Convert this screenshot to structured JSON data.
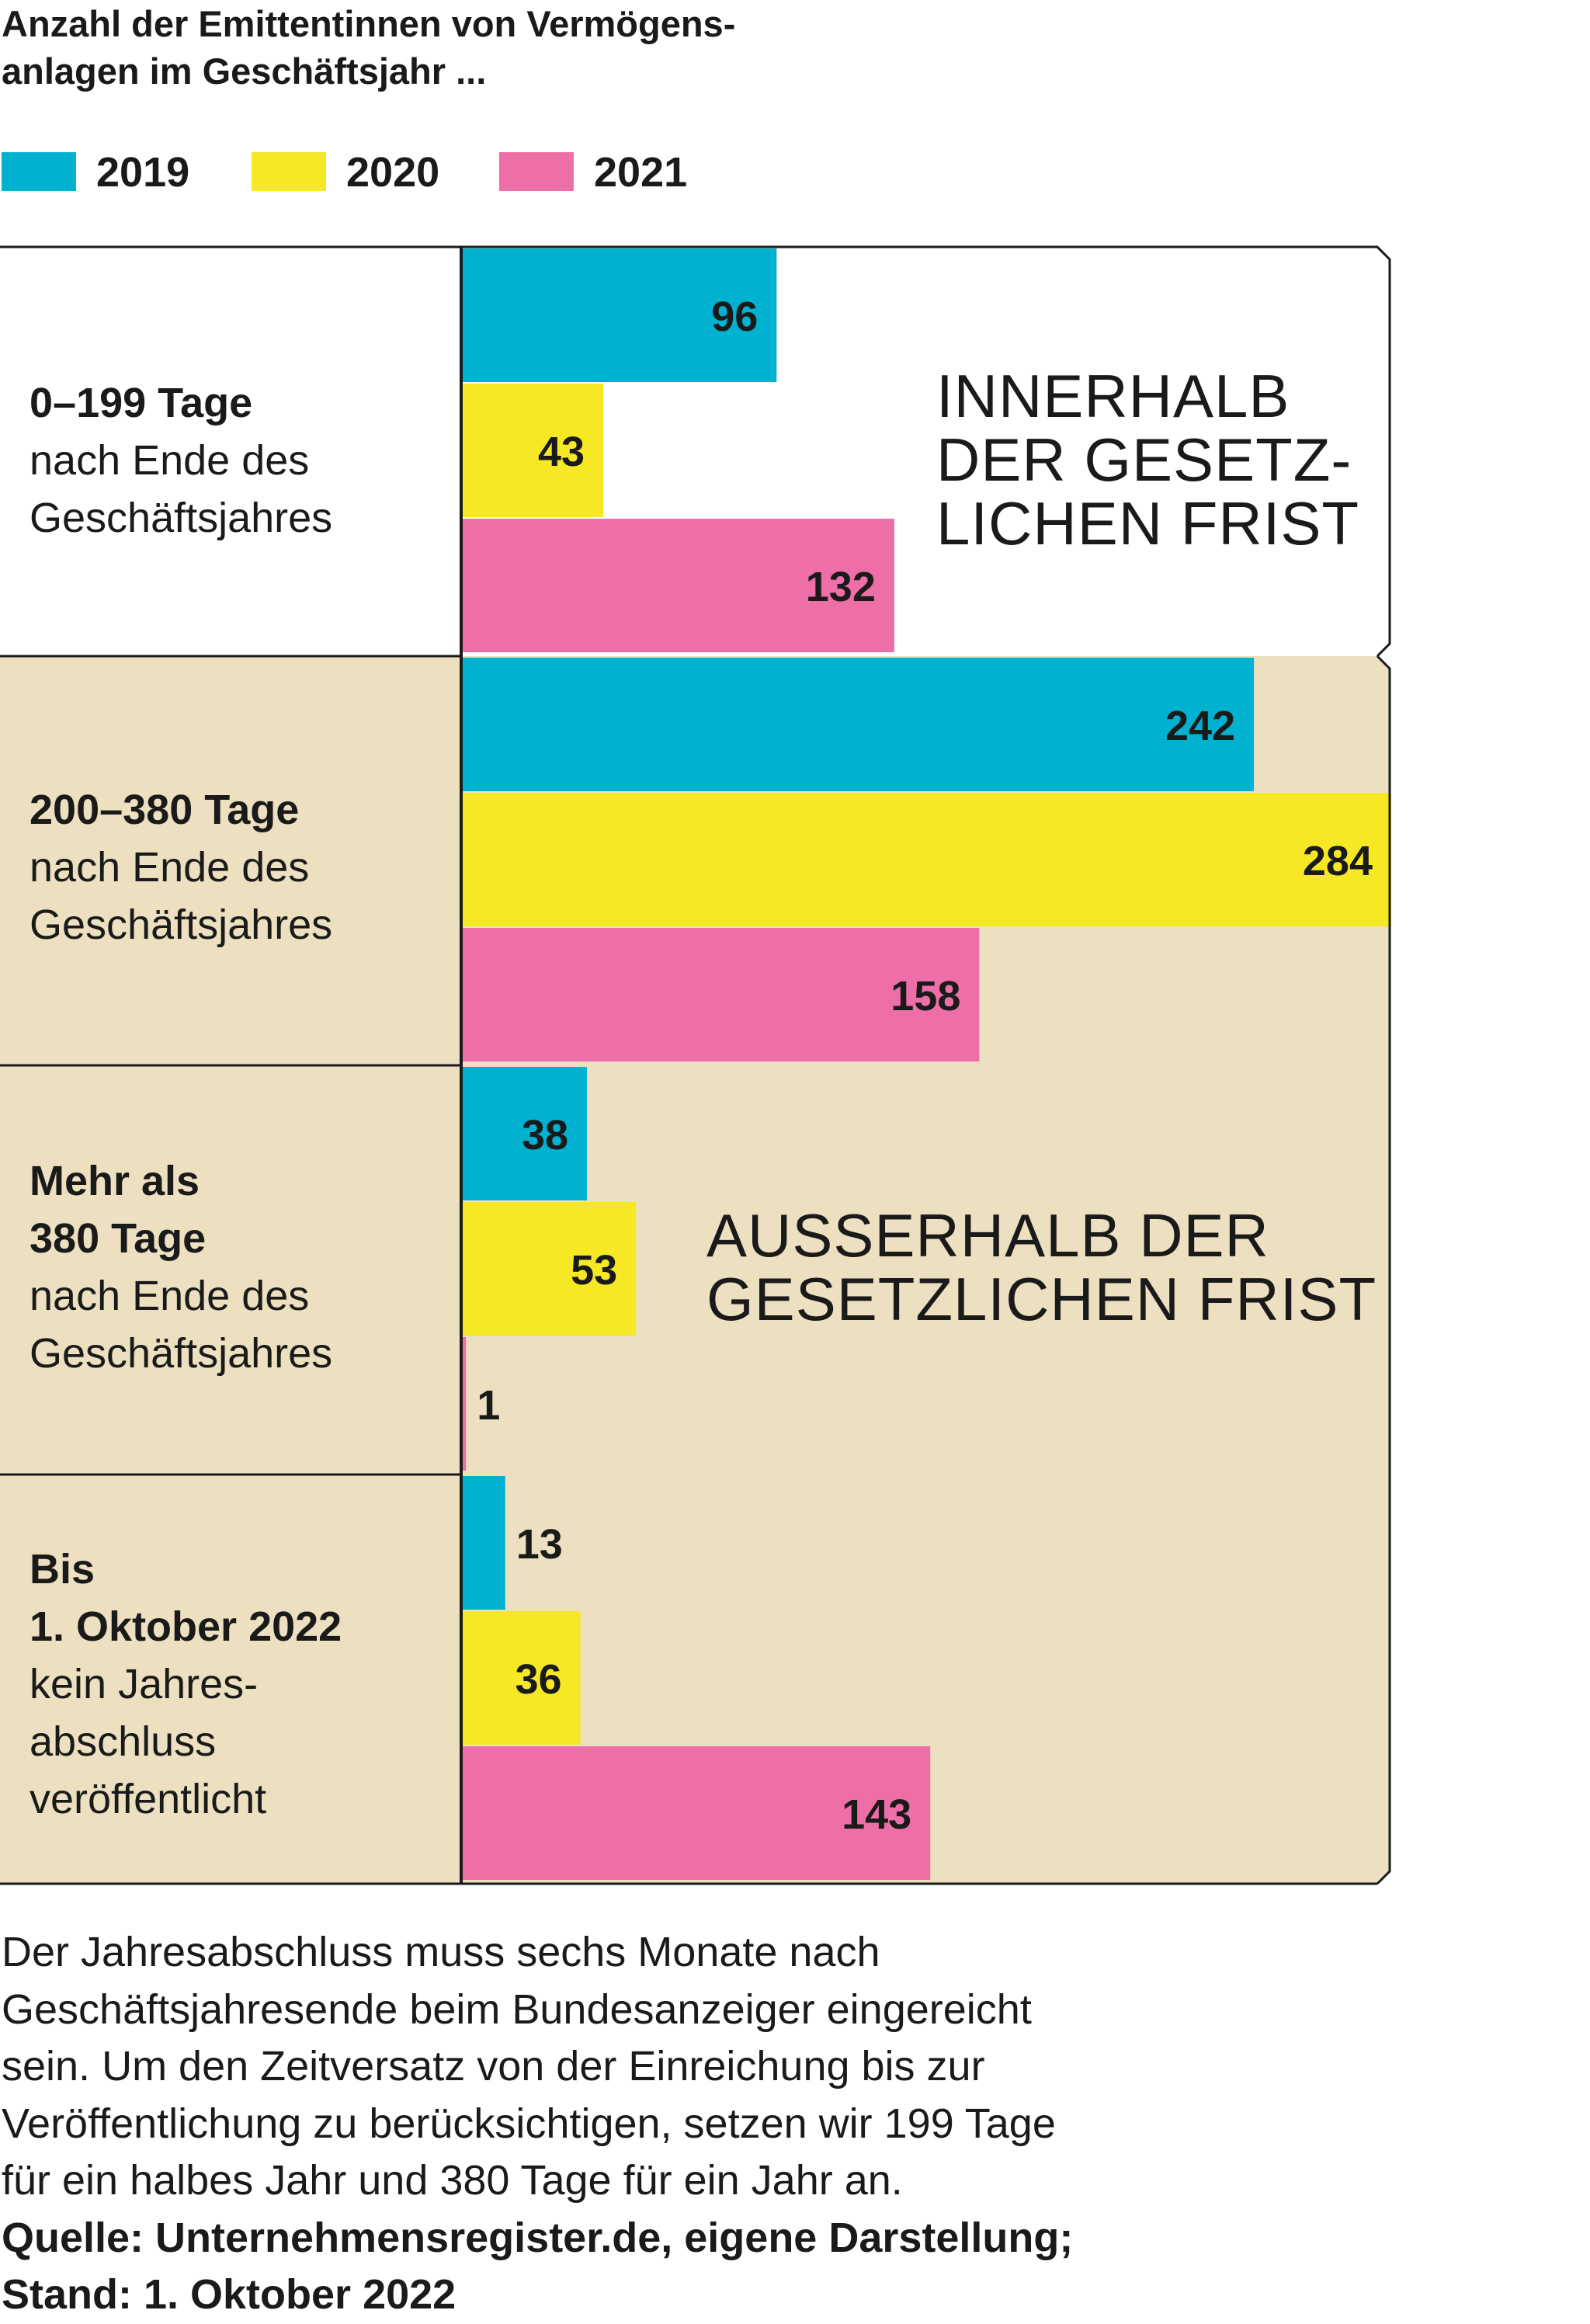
{
  "title_lines": [
    "Anzahl der Emittentinnen von Vermögens-",
    "anlagen im Geschäftsjahr ..."
  ],
  "legend": [
    {
      "label": "2019",
      "color": "#00b1d0"
    },
    {
      "label": "2020",
      "color": "#f6e824"
    },
    {
      "label": "2021",
      "color": "#ee6fa8"
    }
  ],
  "colors": {
    "within_bg": "#ffffff",
    "outside_bg": "#ede0c0",
    "frame": "#1a1a1a"
  },
  "regions": {
    "within": [
      "INNERHALB",
      "DER GESETZ-",
      "LICHEN FRIST"
    ],
    "outside": [
      "AUSSERHALB DER",
      "GESETZLICHEN FRIST"
    ]
  },
  "categories": [
    {
      "lines": [
        {
          "text": "0–199 Tage",
          "bold": true
        },
        {
          "text": "nach Ende des",
          "bold": false
        },
        {
          "text": "Geschäftsjahres",
          "bold": false
        }
      ]
    },
    {
      "lines": [
        {
          "text": "200–380 Tage",
          "bold": true
        },
        {
          "text": "nach Ende des",
          "bold": false
        },
        {
          "text": "Geschäftsjahres",
          "bold": false
        }
      ]
    },
    {
      "lines": [
        {
          "text": "Mehr als",
          "bold": true
        },
        {
          "text": "380 Tage",
          "bold": true
        },
        {
          "text": "nach Ende des",
          "bold": false
        },
        {
          "text": "Geschäftsjahres",
          "bold": false
        }
      ]
    },
    {
      "lines": [
        {
          "text": "Bis",
          "bold": true
        },
        {
          "text": "1. Oktober 2022",
          "bold": true
        },
        {
          "text": "kein Jahres-",
          "bold": false
        },
        {
          "text": "abschluss",
          "bold": false
        },
        {
          "text": "veröffentlicht",
          "bold": false
        }
      ]
    }
  ],
  "chart_data": {
    "type": "bar",
    "orientation": "horizontal",
    "title": "Anzahl der Emittentinnen von Vermögensanlagen im Geschäftsjahr ...",
    "categories": [
      "0–199 Tage nach Ende des Geschäftsjahres",
      "200–380 Tage nach Ende des Geschäftsjahres",
      "Mehr als 380 Tage nach Ende des Geschäftsjahres",
      "Bis 1. Oktober 2022 kein Jahresabschluss veröffentlicht"
    ],
    "series": [
      {
        "name": "2019",
        "values": [
          96,
          242,
          38,
          13
        ]
      },
      {
        "name": "2020",
        "values": [
          43,
          284,
          53,
          36
        ]
      },
      {
        "name": "2021",
        "values": [
          132,
          158,
          1,
          143
        ]
      }
    ],
    "xlim": [
      0,
      284
    ],
    "grid": false,
    "legend_position": "top-left"
  },
  "note_lines": [
    {
      "text": "Der Jahresabschluss muss sechs Monate nach",
      "bold": false
    },
    {
      "text": "Geschäftsjahresende beim Bundesanzeiger eingereicht",
      "bold": false
    },
    {
      "text": "sein. Um den Zeitversatz von der Einreichung bis zur",
      "bold": false
    },
    {
      "text": "Veröffentlichung zu berücksichtigen, setzen wir 199 Tage",
      "bold": false
    },
    {
      "text": "für ein halbes Jahr und 380 Tage für ein Jahr an.",
      "bold": false
    },
    {
      "text": "Quelle: Unternehmensregister.de, eigene Darstellung;",
      "bold": true
    },
    {
      "text": "Stand: 1. Oktober 2022",
      "bold": true
    }
  ]
}
